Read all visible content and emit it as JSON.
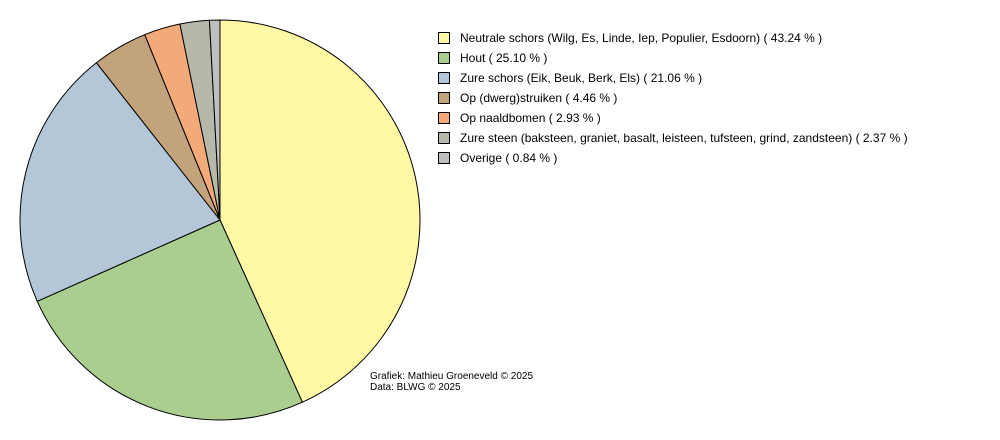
{
  "chart_data": {
    "type": "pie",
    "series": [
      {
        "name": "Neutrale schors (Wilg, Es, Linde, Iep, Populier, Esdoorn)",
        "value": 43.24,
        "color": "#fff9a6",
        "legend": "Neutrale schors (Wilg, Es, Linde, Iep, Populier, Esdoorn) ( 43.24 % )"
      },
      {
        "name": "Hout",
        "value": 25.1,
        "color": "#aacd90",
        "legend": "Hout ( 25.10 % )"
      },
      {
        "name": "Zure schors (Eik, Beuk, Berk, Els)",
        "value": 21.06,
        "color": "#b3c7d8",
        "legend": "Zure schors (Eik, Beuk, Berk, Els) ( 21.06 % )"
      },
      {
        "name": "Op (dwerg)struiken",
        "value": 4.46,
        "color": "#c2a37c",
        "legend": "Op (dwerg)struiken ( 4.46 % )"
      },
      {
        "name": "Op naaldbomen",
        "value": 2.93,
        "color": "#f2aa78",
        "legend": "Op naaldbomen ( 2.93 % )"
      },
      {
        "name": "Zure steen (baksteen, graniet, basalt, leisteen, tufsteen, grind, zandsteen)",
        "value": 2.37,
        "color": "#b8b8aa",
        "legend": "Zure steen (baksteen, graniet, basalt, leisteen, tufsteen, grind, zandsteen) ( 2.37 % )"
      },
      {
        "name": "Overige",
        "value": 0.84,
        "color": "#bfbfbf",
        "legend": "Overige ( 0.84 % )"
      }
    ],
    "legend_position": "top-right",
    "start_angle": "top",
    "direction": "clockwise"
  },
  "credits": {
    "line1": "Grafiek: Mathieu Groeneveld © 2025",
    "line2": "Data: BLWG © 2025"
  }
}
